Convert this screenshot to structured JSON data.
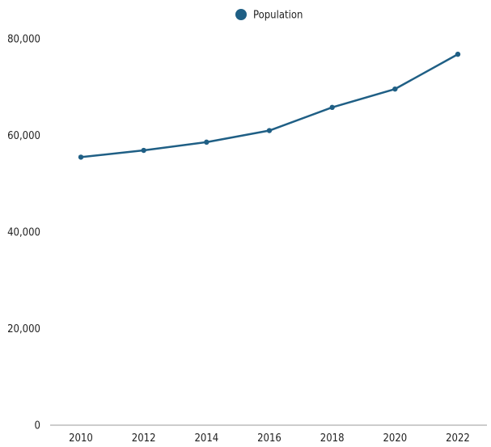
{
  "chart_data": {
    "type": "line",
    "x": [
      "2010",
      "2012",
      "2014",
      "2016",
      "2018",
      "2020",
      "2022"
    ],
    "series": [
      {
        "name": "Population",
        "values": [
          55500,
          56900,
          58600,
          61000,
          65800,
          69600,
          76800
        ],
        "color": "#1f5f85"
      }
    ],
    "ylim": [
      0,
      80000
    ],
    "yticks": [
      0,
      20000,
      40000,
      60000,
      80000
    ],
    "ytick_labels": [
      "0",
      "20,000",
      "40,000",
      "60,000",
      "80,000"
    ],
    "xtick_labels": [
      "2010",
      "2012",
      "2014",
      "2016",
      "2018",
      "2020",
      "2022"
    ],
    "grid": false,
    "legend": {
      "position": "top-center",
      "labels": [
        "Population"
      ],
      "marker": "circle"
    },
    "title": "",
    "xlabel": "",
    "ylabel": ""
  }
}
